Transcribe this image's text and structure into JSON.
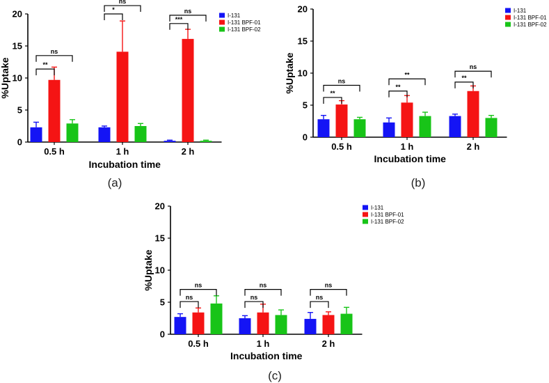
{
  "colors": {
    "I-131": "#1414f5",
    "I-131 BPF-01": "#f51414",
    "I-131 BPF-02": "#18c418"
  },
  "chart_data": [
    {
      "type": "bar",
      "panel_label": "(a)",
      "categories": [
        "0.5 h",
        "1 h",
        "2 h"
      ],
      "xlabel": "Incubation time",
      "ylabel": "%Uptake",
      "ylim": [
        0,
        20
      ],
      "yticks": [
        "0",
        "5",
        "10",
        "15",
        "20"
      ],
      "legend_position": "top-right",
      "series": [
        {
          "name": "I-131",
          "values": [
            2.3,
            2.3,
            0.2
          ],
          "errors": [
            0.8,
            0.2,
            0.1
          ]
        },
        {
          "name": "I-131 BPF-01",
          "values": [
            9.7,
            14.1,
            16.1
          ],
          "errors": [
            2.0,
            4.8,
            1.5
          ]
        },
        {
          "name": "I-131 BPF-02",
          "values": [
            2.9,
            2.5,
            0.2
          ],
          "errors": [
            0.6,
            0.4,
            0.1
          ]
        }
      ],
      "significance": [
        {
          "group": 0,
          "from": 0,
          "to": 1,
          "y": 11.4,
          "label": "**"
        },
        {
          "group": 0,
          "from": 0,
          "to": 2,
          "y": 13.5,
          "label": "ns"
        },
        {
          "group": 1,
          "from": 0,
          "to": 1,
          "y": 20.0,
          "label": "*"
        },
        {
          "group": 1,
          "from": 0,
          "to": 2,
          "y": 21.3,
          "label": "ns"
        },
        {
          "group": 2,
          "from": 0,
          "to": 1,
          "y": 18.5,
          "label": "***"
        },
        {
          "group": 2,
          "from": 0,
          "to": 2,
          "y": 19.8,
          "label": "ns"
        }
      ]
    },
    {
      "type": "bar",
      "panel_label": "(b)",
      "categories": [
        "0.5 h",
        "1 h",
        "2 h"
      ],
      "xlabel": "Incubation time",
      "ylabel": "%Uptake",
      "ylim": [
        0,
        20
      ],
      "yticks": [
        "0",
        "5",
        "10",
        "15",
        "20"
      ],
      "legend_position": "top-right",
      "series": [
        {
          "name": "I-131",
          "values": [
            2.8,
            2.3,
            3.3
          ],
          "errors": [
            0.6,
            0.7,
            0.3
          ]
        },
        {
          "name": "I-131 BPF-01",
          "values": [
            5.1,
            5.4,
            7.2
          ],
          "errors": [
            0.6,
            1.1,
            0.8
          ]
        },
        {
          "name": "I-131 BPF-02",
          "values": [
            2.8,
            3.3,
            3.0
          ],
          "errors": [
            0.3,
            0.6,
            0.4
          ]
        }
      ],
      "significance": [
        {
          "group": 0,
          "from": 0,
          "to": 1,
          "y": 6.2,
          "label": "**"
        },
        {
          "group": 0,
          "from": 0,
          "to": 2,
          "y": 8.1,
          "label": "ns"
        },
        {
          "group": 1,
          "from": 0,
          "to": 1,
          "y": 7.2,
          "label": "**"
        },
        {
          "group": 1,
          "from": 0,
          "to": 2,
          "y": 9.1,
          "label": "**"
        },
        {
          "group": 2,
          "from": 0,
          "to": 1,
          "y": 8.6,
          "label": "**"
        },
        {
          "group": 2,
          "from": 0,
          "to": 2,
          "y": 10.3,
          "label": "ns"
        }
      ]
    },
    {
      "type": "bar",
      "panel_label": "(c)",
      "categories": [
        "0.5 h",
        "1 h",
        "2 h"
      ],
      "xlabel": "Incubation time",
      "ylabel": "%Uptake",
      "ylim": [
        0,
        20
      ],
      "yticks": [
        "0",
        "5",
        "10",
        "15",
        "20"
      ],
      "legend_position": "top-right",
      "series": [
        {
          "name": "I-131",
          "values": [
            2.7,
            2.5,
            2.4
          ],
          "errors": [
            0.5,
            0.4,
            1.0
          ]
        },
        {
          "name": "I-131 BPF-01",
          "values": [
            3.4,
            3.4,
            3.0
          ],
          "errors": [
            0.7,
            1.3,
            0.5
          ]
        },
        {
          "name": "I-131 BPF-02",
          "values": [
            4.8,
            3.0,
            3.2
          ],
          "errors": [
            1.2,
            0.8,
            1.0
          ]
        }
      ],
      "significance": [
        {
          "group": 0,
          "from": 0,
          "to": 1,
          "y": 5.1,
          "label": "ns"
        },
        {
          "group": 0,
          "from": 0,
          "to": 2,
          "y": 7.0,
          "label": "ns"
        },
        {
          "group": 1,
          "from": 0,
          "to": 1,
          "y": 5.1,
          "label": "ns"
        },
        {
          "group": 1,
          "from": 0,
          "to": 2,
          "y": 7.0,
          "label": "ns"
        },
        {
          "group": 2,
          "from": 0,
          "to": 1,
          "y": 5.1,
          "label": "ns"
        },
        {
          "group": 2,
          "from": 0,
          "to": 2,
          "y": 7.0,
          "label": "ns"
        }
      ]
    }
  ]
}
